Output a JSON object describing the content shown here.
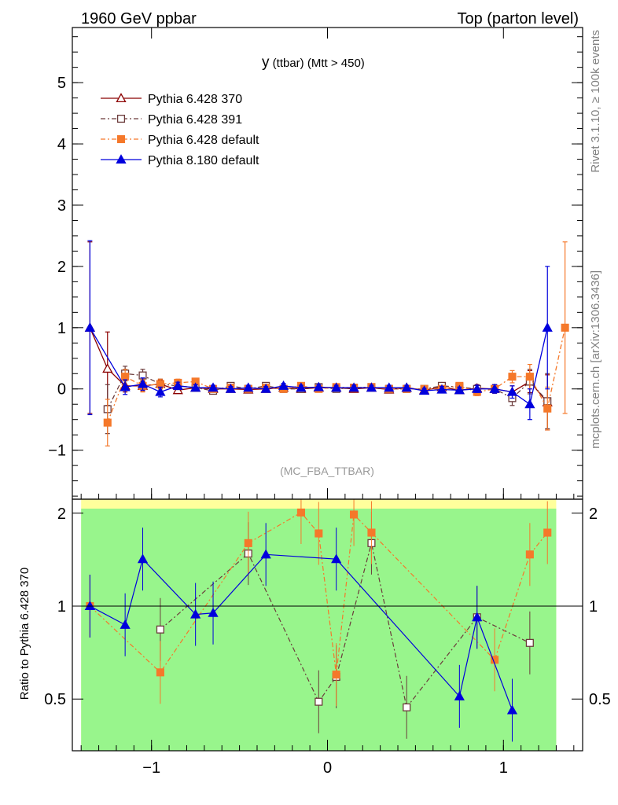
{
  "header": {
    "left": "1960 GeV ppbar",
    "right": "Top (parton level)"
  },
  "side_labels": {
    "rivet": "Rivet 3.1.10, ≥ 100k events",
    "mcplots": "mcplots.cern.ch [arXiv:1306.3436]"
  },
  "chart_data": {
    "type": "line",
    "title_main": "y",
    "title_sub": " (ttbar) (Mtt > 450)",
    "analysis": "(MC_FBA_TTBAR)",
    "xlabel": "",
    "ylabel": "",
    "ratio_ylabel": "Ratio to Pythia 6.428 370",
    "xlim": [
      -1.45,
      1.45
    ],
    "ylim": [
      -1.8,
      5.9
    ],
    "ratio_ylim": [
      0.34,
      2.22
    ],
    "x_ticks": [
      -1,
      0,
      1
    ],
    "x_tick_labels": [
      "−1",
      "0",
      "1"
    ],
    "y_ticks": [
      -1,
      0,
      1,
      2,
      3,
      4,
      5
    ],
    "y_tick_labels": [
      "−1",
      "0",
      "1",
      "2",
      "3",
      "4",
      "5"
    ],
    "ratio_ticks": [
      0.5,
      1,
      2
    ],
    "ratio_tick_labels": [
      "0.5",
      "1",
      "2"
    ],
    "reference_line": 1,
    "x": [
      -1.35,
      -1.25,
      -1.15,
      -1.05,
      -0.95,
      -0.85,
      -0.75,
      -0.65,
      -0.55,
      -0.45,
      -0.35,
      -0.25,
      -0.15,
      -0.05,
      0.05,
      0.15,
      0.25,
      0.35,
      0.45,
      0.55,
      0.65,
      0.75,
      0.85,
      0.95,
      1.05,
      1.15,
      1.25,
      1.35
    ],
    "series": [
      {
        "name": "Pythia 6.428 370",
        "color": "#8b0000",
        "marker": "triangle-open",
        "dash": "",
        "values": [
          1.0,
          0.33,
          0.05,
          0.05,
          0.08,
          -0.02,
          0.02,
          0.0,
          0.0,
          -0.01,
          0.0,
          0.02,
          0.0,
          0.02,
          0.02,
          0.0,
          0.02,
          -0.01,
          0.02,
          -0.02,
          0.03,
          -0.02,
          0.01,
          0.0,
          -0.05,
          0.12,
          -0.22,
          null
        ],
        "errors": [
          1.4,
          0.6,
          0.1,
          0.08,
          0.07,
          0.05,
          0.05,
          0.04,
          0.04,
          0.04,
          0.04,
          0.04,
          0.04,
          0.04,
          0.04,
          0.04,
          0.04,
          0.04,
          0.04,
          0.04,
          0.05,
          0.05,
          0.06,
          0.07,
          0.1,
          0.18,
          0.45,
          0
        ],
        "ratio": [
          1.0,
          null,
          null,
          null,
          null,
          null,
          null,
          null,
          null,
          null,
          null,
          null,
          null,
          null,
          null,
          null,
          null,
          null,
          null,
          null,
          null,
          null,
          null,
          null,
          null,
          null,
          null,
          null
        ]
      },
      {
        "name": "Pythia 6.428 391",
        "color": "#6b3b3b",
        "marker": "square-open",
        "dash": "6,3,2,3",
        "values": [
          null,
          -0.33,
          0.25,
          0.22,
          0.08,
          0.05,
          0.02,
          -0.03,
          0.05,
          0.0,
          0.05,
          0.0,
          0.0,
          0.03,
          0.0,
          0.02,
          0.03,
          0.0,
          0.0,
          0.0,
          0.05,
          0.03,
          0.0,
          0.0,
          -0.15,
          0.12,
          -0.2,
          null
        ],
        "errors": [
          0,
          0.4,
          0.12,
          0.1,
          0.08,
          0.06,
          0.05,
          0.04,
          0.04,
          0.04,
          0.04,
          0.04,
          0.04,
          0.04,
          0.04,
          0.04,
          0.04,
          0.04,
          0.04,
          0.04,
          0.05,
          0.05,
          0.06,
          0.07,
          0.12,
          0.2,
          0.45,
          0
        ],
        "ratio": [
          null,
          null,
          null,
          null,
          0.84,
          null,
          null,
          null,
          null,
          1.48,
          null,
          null,
          null,
          0.49,
          0.59,
          null,
          1.6,
          null,
          0.47,
          null,
          null,
          null,
          0.92,
          null,
          null,
          0.76,
          null,
          null
        ]
      },
      {
        "name": "Pythia 6.428 default",
        "color": "#f5782a",
        "marker": "square-filled",
        "dash": "6,3,2,3",
        "values": [
          null,
          -0.55,
          0.2,
          0.05,
          0.08,
          0.1,
          0.12,
          0.0,
          0.02,
          0.0,
          0.02,
          0.0,
          0.05,
          0.0,
          0.03,
          0.02,
          0.03,
          0.0,
          0.0,
          0.0,
          0.0,
          0.05,
          -0.05,
          0.0,
          0.2,
          0.2,
          -0.32,
          1.0
        ],
        "errors": [
          0,
          0.38,
          0.12,
          0.1,
          0.08,
          0.06,
          0.05,
          0.04,
          0.04,
          0.04,
          0.04,
          0.04,
          0.04,
          0.04,
          0.04,
          0.04,
          0.04,
          0.04,
          0.04,
          0.04,
          0.05,
          0.05,
          0.06,
          0.07,
          0.1,
          0.2,
          0.35,
          1.4
        ],
        "ratio": [
          1.0,
          null,
          null,
          null,
          0.61,
          null,
          null,
          null,
          null,
          1.6,
          null,
          null,
          2.01,
          1.72,
          0.6,
          1.98,
          1.73,
          null,
          null,
          null,
          null,
          null,
          null,
          0.67,
          null,
          1.47,
          1.73,
          null
        ]
      },
      {
        "name": "Pythia 8.180 default",
        "color": "#0000dd",
        "marker": "triangle-filled",
        "dash": "",
        "values": [
          1.0,
          null,
          0.03,
          0.08,
          -0.05,
          0.05,
          0.02,
          0.02,
          0.0,
          0.02,
          0.0,
          0.05,
          0.02,
          0.03,
          0.02,
          0.02,
          0.02,
          0.02,
          0.02,
          -0.03,
          -0.01,
          -0.02,
          0.0,
          0.0,
          -0.05,
          -0.25,
          1.0,
          null
        ],
        "errors": [
          1.42,
          0,
          0.12,
          0.1,
          0.08,
          0.06,
          0.05,
          0.04,
          0.04,
          0.04,
          0.04,
          0.04,
          0.04,
          0.04,
          0.04,
          0.04,
          0.04,
          0.04,
          0.04,
          0.04,
          0.05,
          0.05,
          0.06,
          0.07,
          0.1,
          0.25,
          1.0,
          0
        ],
        "ratio": [
          1.0,
          null,
          0.87,
          1.42,
          null,
          null,
          0.94,
          0.95,
          null,
          null,
          1.47,
          null,
          null,
          null,
          1.42,
          null,
          null,
          null,
          null,
          null,
          null,
          0.51,
          0.92,
          null,
          0.46,
          null,
          null,
          null
        ]
      }
    ]
  }
}
